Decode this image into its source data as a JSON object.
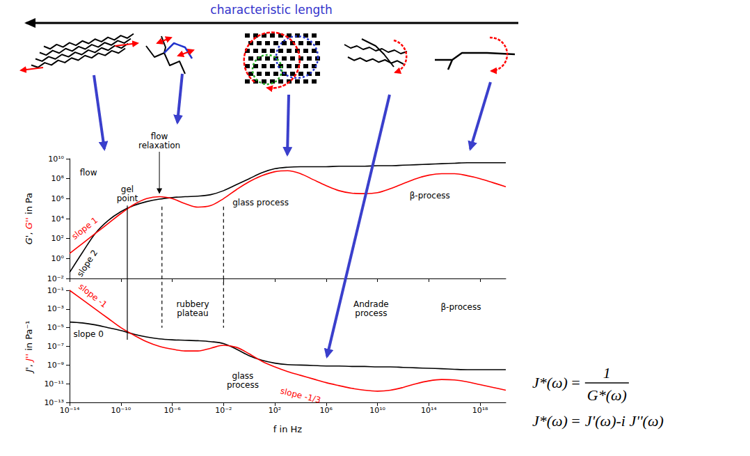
{
  "header": {
    "title": "characteristic length"
  },
  "chart_data": [
    {
      "type": "line",
      "log": true,
      "grid": false,
      "tick_labels": "y",
      "ylabel": "G', G'' in Pa",
      "x": [
        1e-14,
        1e-13,
        1e-12,
        1e-11,
        1e-10,
        1e-09,
        1e-08,
        1e-07,
        1e-06,
        1e-05,
        0.0001,
        0.001,
        0.01,
        0.1,
        1,
        10,
        100,
        1000,
        10000.0,
        100000.0,
        1000000.0,
        10000000.0,
        100000000.0,
        1000000000.0,
        10000000000.0,
        100000000000.0,
        1000000000000.0,
        10000000000000.0,
        100000000000000.0,
        1000000000000000.0,
        1e+16,
        1e+17,
        1e+18,
        1e+19,
        1e+20
      ],
      "series": [
        {
          "name": "G'",
          "color": "#000000",
          "values": [
            0.04,
            4,
            320,
            6300,
            50000.0,
            200000.0,
            500000.0,
            890000.0,
            1260000.0,
            1580000.0,
            1780000.0,
            2500000.0,
            6300000.0,
            25000000.0,
            100000000.0,
            400000000.0,
            1000000000.0,
            1410000000.0,
            1580000000.0,
            1580000000.0,
            1580000000.0,
            1780000000.0,
            1780000000.0,
            1780000000.0,
            2000000000.0,
            2000000000.0,
            2240000000.0,
            2500000000.0,
            2820000000.0,
            3160000000.0,
            3550000000.0,
            4000000000.0,
            4000000000.0,
            4000000000.0,
            4000000000.0
          ]
        },
        {
          "name": "G''",
          "color": "#ff0000",
          "values": [
            3.16,
            32,
            320,
            3200,
            32000.0,
            250000.0,
            1000000.0,
            1580000.0,
            1000000.0,
            320000.0,
            141000.0,
            200000.0,
            1000000.0,
            7900000.0,
            50000000.0,
            200000000.0,
            500000000.0,
            630000000.0,
            320000000.0,
            79000000.0,
            20000000.0,
            6300000.0,
            3550000.0,
            3200000.0,
            4000000.0,
            10000000.0,
            32000000.0,
            100000000.0,
            224000000.0,
            320000000.0,
            320000000.0,
            200000000.0,
            100000000.0,
            40000000.0,
            15800000.0
          ]
        }
      ],
      "xlim": [
        1e-14,
        1e+20
      ],
      "xticks": [
        {
          "value": 1e-14,
          "label": "10⁻¹⁴"
        },
        {
          "value": 1e-10,
          "label": "10⁻¹⁰"
        },
        {
          "value": 1e-06,
          "label": "10⁻⁶"
        },
        {
          "value": 0.01,
          "label": "10⁻²"
        },
        {
          "value": 100,
          "label": "10²"
        },
        {
          "value": 1000000.0,
          "label": "10⁶"
        },
        {
          "value": 10000000000.0,
          "label": "10¹⁰"
        },
        {
          "value": 100000000000000.0,
          "label": "10¹⁴"
        },
        {
          "value": 1e+18,
          "label": "10¹⁸"
        }
      ],
      "ylim": [
        0.01,
        10000000000.0
      ],
      "yticks": [
        {
          "value": 0.01,
          "label": "10⁻²"
        },
        {
          "value": 1,
          "label": "10⁰"
        },
        {
          "value": 100,
          "label": "10²"
        },
        {
          "value": 10000.0,
          "label": "10⁴"
        },
        {
          "value": 1000000.0,
          "label": "10⁶"
        },
        {
          "value": 100000000.0,
          "label": "10⁸"
        },
        {
          "value": 10000000000.0,
          "label": "10¹⁰"
        }
      ],
      "annotations": [
        "flow",
        "gel point",
        "flow relaxation",
        "glass process",
        "β-process",
        "slope 1",
        "slope 2"
      ]
    },
    {
      "type": "line",
      "log": true,
      "grid": false,
      "xlabel": "f in Hz",
      "ylabel": "J', J'' in Pa⁻¹",
      "x": [
        1e-14,
        1e-13,
        1e-12,
        1e-11,
        1e-10,
        1e-09,
        1e-08,
        1e-07,
        1e-06,
        1e-05,
        0.0001,
        0.001,
        0.01,
        0.1,
        1,
        10,
        100,
        1000,
        10000.0,
        100000.0,
        1000000.0,
        10000000.0,
        100000000.0,
        1000000000.0,
        10000000000.0,
        100000000000.0,
        1000000000000.0,
        10000000000000.0,
        100000000000000.0,
        1000000000000000.0,
        1e+16,
        1e+17,
        1e+18,
        1e+19,
        1e+20
      ],
      "series": [
        {
          "name": "J'",
          "color": "#000000",
          "values": [
            4e-05,
            3.2e-05,
            2e-05,
            1e-05,
            5e-06,
            2e-06,
            1e-06,
            6.3e-07,
            5e-07,
            4.5e-07,
            4e-07,
            3.2e-07,
            2e-07,
            5e-08,
            1e-08,
            3.2e-09,
            1.6e-09,
            1.1e-09,
            1e-09,
            8.9e-10,
            7.9e-10,
            7.9e-10,
            7.1e-10,
            7.1e-10,
            6.3e-10,
            6.3e-10,
            5.6e-10,
            5e-10,
            4.5e-10,
            4e-10,
            3.5e-10,
            3.2e-10,
            3.2e-10,
            3.2e-10,
            3.2e-10
          ]
        },
        {
          "name": "J''",
          "color": "#ff0000",
          "values": [
            0.1,
            0.01,
            0.001,
            0.0001,
            1e-05,
            1.6e-06,
            3.2e-07,
            1e-07,
            5e-08,
            3.2e-08,
            3.2e-08,
            6.3e-08,
            1.3e-07,
            7.9e-08,
            1.6e-08,
            2.5e-09,
            6.3e-10,
            2e-10,
            7.9e-11,
            3.2e-11,
            1.3e-11,
            6.3e-12,
            3.2e-12,
            2e-12,
            1.6e-12,
            2e-12,
            4e-12,
            1e-11,
            2e-11,
            2.8e-11,
            2.5e-11,
            1.6e-11,
            7.9e-12,
            4e-12,
            2e-12
          ]
        }
      ],
      "xlim": [
        1e-14,
        1e+20
      ],
      "xticks": [
        {
          "value": 1e-14,
          "label": "10⁻¹⁴"
        },
        {
          "value": 1e-10,
          "label": "10⁻¹⁰"
        },
        {
          "value": 1e-06,
          "label": "10⁻⁶"
        },
        {
          "value": 0.01,
          "label": "10⁻²"
        },
        {
          "value": 100,
          "label": "10²"
        },
        {
          "value": 1000000.0,
          "label": "10⁶"
        },
        {
          "value": 10000000000.0,
          "label": "10¹⁰"
        },
        {
          "value": 100000000000000.0,
          "label": "10¹⁴"
        },
        {
          "value": 1e+18,
          "label": "10¹⁸"
        }
      ],
      "ylim": [
        1e-13,
        0.1
      ],
      "yticks": [
        {
          "value": 1e-13,
          "label": "10⁻¹³"
        },
        {
          "value": 1e-11,
          "label": "10⁻¹¹"
        },
        {
          "value": 1e-09,
          "label": "10⁻⁹"
        },
        {
          "value": 1e-07,
          "label": "10⁻⁷"
        },
        {
          "value": 1e-05,
          "label": "10⁻⁵"
        },
        {
          "value": 0.001,
          "label": "10⁻³"
        },
        {
          "value": 0.1,
          "label": "10⁻¹"
        }
      ],
      "annotations": [
        "slope -1",
        "slope 0",
        "rubbery plateau",
        "glass process",
        "Andrade process",
        "β-process",
        "slope -1/3"
      ]
    }
  ],
  "formulas": [
    {
      "left": "J*(ω)",
      "sign": "=",
      "numerator": "1",
      "denominator": "G*(ω)"
    },
    {
      "left": "J*(ω)",
      "sign": "=",
      "right": "J'(ω)-i J''(ω)"
    }
  ]
}
